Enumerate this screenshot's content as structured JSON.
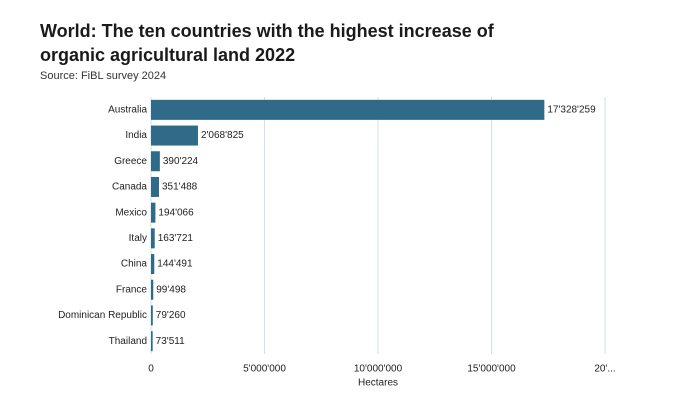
{
  "chart_data": {
    "type": "barh",
    "title": [
      "World: The ten countries with the highest increase of",
      "organic agricultural land 2022"
    ],
    "subtitle": "Source: FiBL survey 2024",
    "x_label": "Hectares",
    "categories": [
      "Australia",
      "India",
      "Greece",
      "Canada",
      "Mexico",
      "Italy",
      "China",
      "France",
      "Dominican Republic",
      "Thailand"
    ],
    "values": [
      17328259,
      2068825,
      390224,
      351488,
      194066,
      163721,
      144491,
      99498,
      79260,
      73511
    ],
    "value_labels": [
      "17'328'259",
      "2'068'825",
      "390'224",
      "351'488",
      "194'066",
      "163'721",
      "144'491",
      "99'498",
      "79'260",
      "73'511"
    ],
    "color": "#2f6a88",
    "xlim": [
      0,
      20000000
    ],
    "xticks": [
      0,
      {
        "value": 5000000,
        "label": "5'000'000"
      },
      {
        "value": 10000000,
        "label": "10'000'000"
      },
      {
        "value": 15000000,
        "label": "15'000'000"
      },
      {
        "value": 20000000,
        "label": "20'..."
      }
    ],
    "grid": true
  }
}
